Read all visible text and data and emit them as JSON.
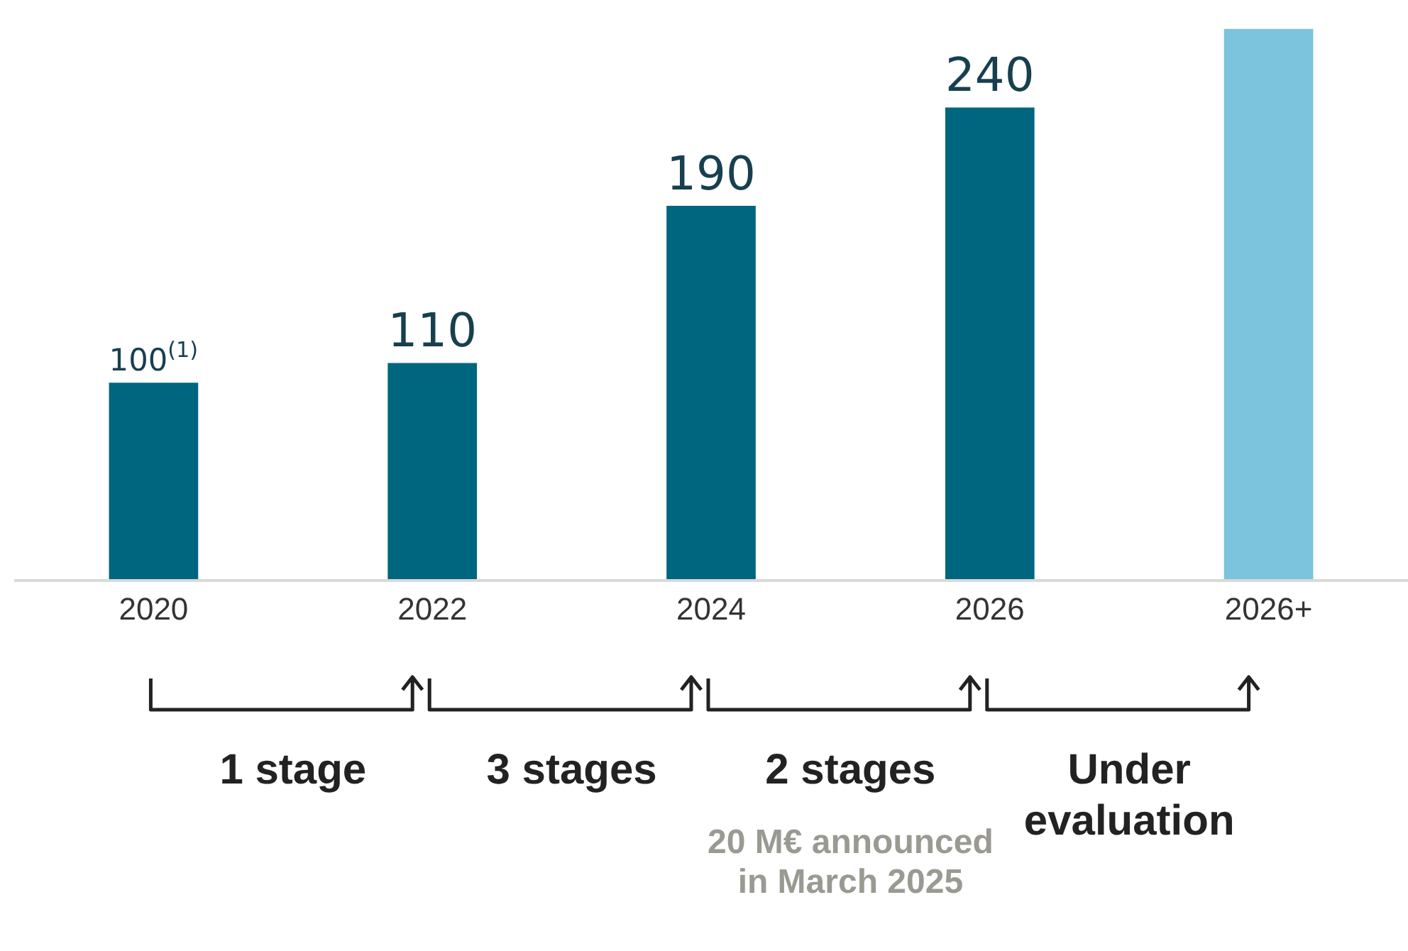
{
  "chart_data": {
    "type": "bar",
    "categories": [
      "2020",
      "2022",
      "2024",
      "2026",
      "2026+"
    ],
    "values": [
      100,
      110,
      190,
      240,
      280
    ],
    "colors": [
      "#00657f",
      "#00657f",
      "#00657f",
      "#00657f",
      "#7cc3dd"
    ],
    "value_labels": [
      "100$^{(1)}$",
      "110",
      "190",
      "240",
      null
    ],
    "annotations": [
      "1 stage",
      "3 stages",
      "2 stages",
      "Under evaluation",
      "20 M€ announced in March 2025"
    ],
    "grid": false,
    "legend": false
  }
}
